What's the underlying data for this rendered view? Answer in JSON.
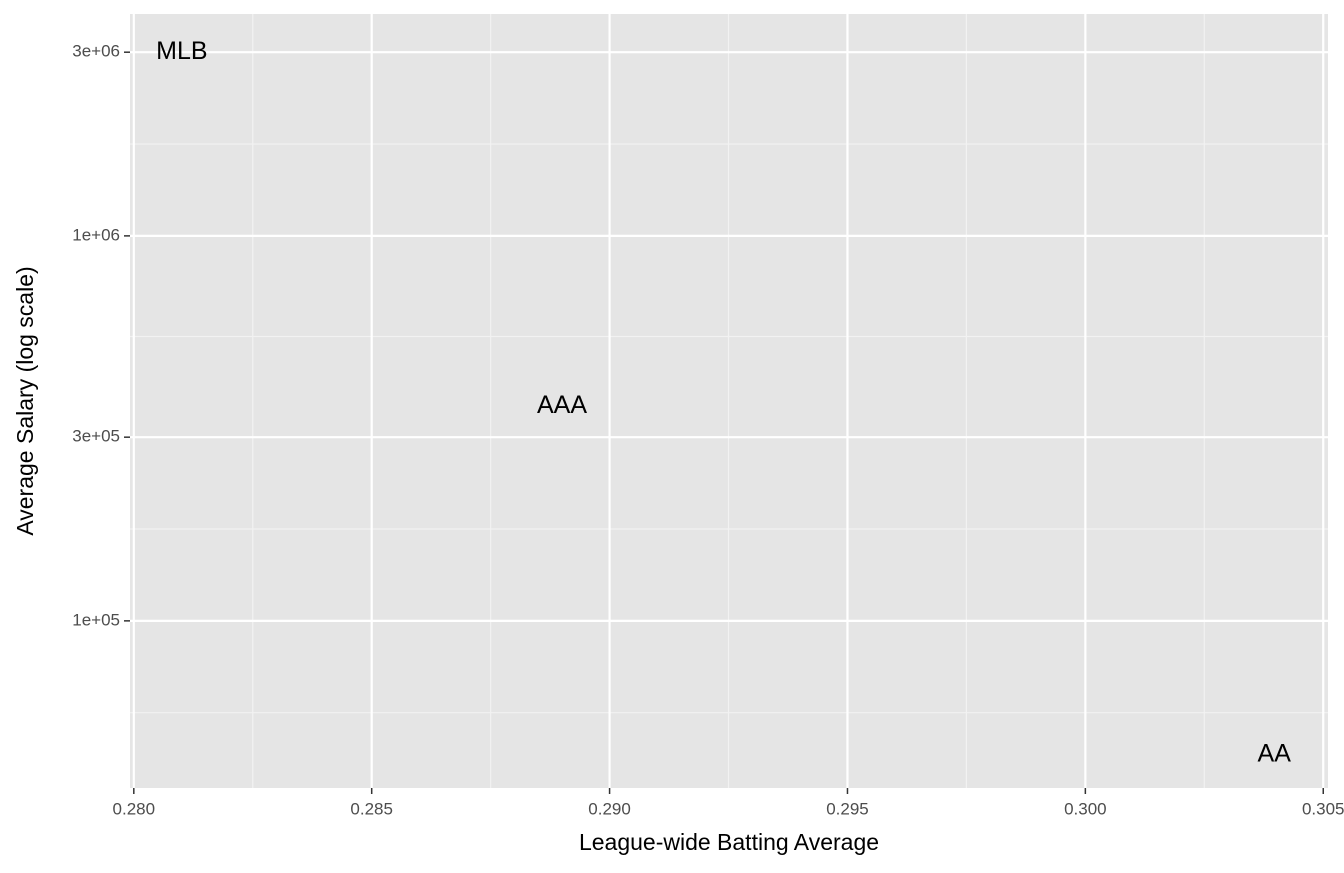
{
  "chart_data": {
    "type": "scatter",
    "xlabel": "League-wide Batting Average",
    "ylabel": "Average Salary (log scale)",
    "labels": [
      "MLB",
      "AAA",
      "AA"
    ],
    "x": [
      0.28101,
      0.289,
      0.30397
    ],
    "values": [
      3000000,
      361000,
      44900
    ],
    "xlim": [
      0.27992,
      0.3051
    ],
    "ylim": [
      36800,
      3770000
    ],
    "yscale": "log",
    "xticks": [
      {
        "value": 0.28,
        "label": "0.280"
      },
      {
        "value": 0.285,
        "label": "0.285"
      },
      {
        "value": 0.29,
        "label": "0.290"
      },
      {
        "value": 0.295,
        "label": "0.295"
      },
      {
        "value": 0.3,
        "label": "0.300"
      },
      {
        "value": 0.305,
        "label": "0.305"
      }
    ],
    "yticks": [
      {
        "value": 100000,
        "label": "1e+05"
      },
      {
        "value": 300000,
        "label": "3e+05"
      },
      {
        "value": 1000000,
        "label": "1e+06"
      },
      {
        "value": 3000000,
        "label": "3e+06"
      }
    ],
    "grid": true,
    "color": "#000000"
  }
}
